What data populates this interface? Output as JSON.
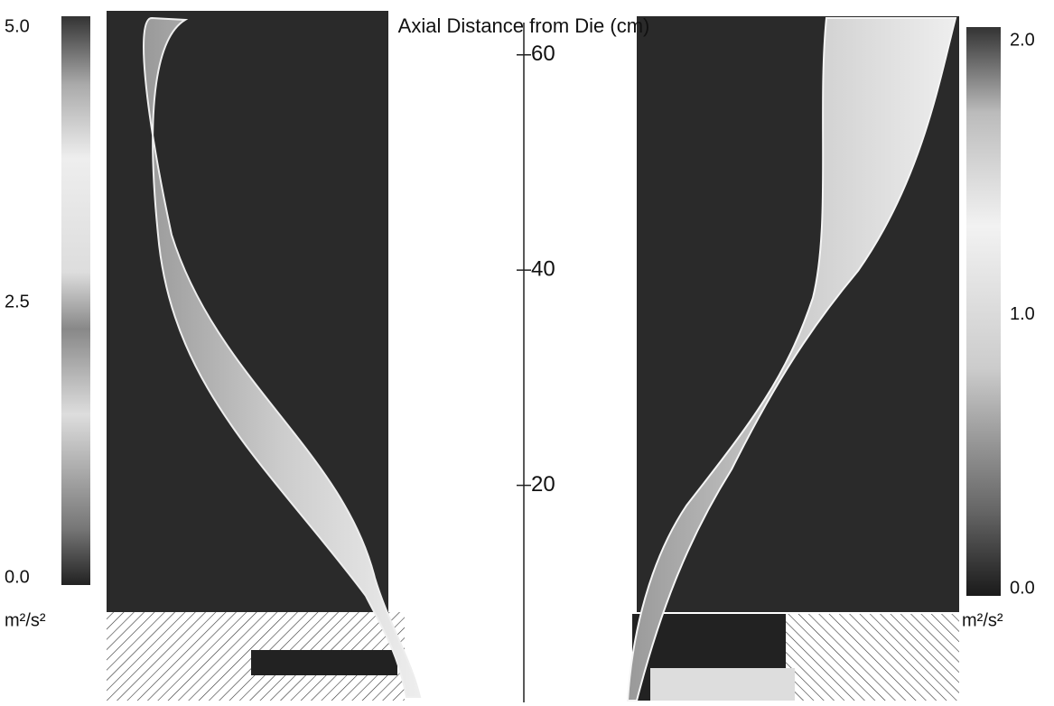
{
  "chart_data": {
    "type": "contour",
    "title": "Axial Distance from Die (cm)",
    "ylim": [
      0,
      63
    ],
    "yticks": [
      20,
      40,
      60
    ],
    "colorbars": [
      {
        "unit": "m²/s²",
        "clim": [
          0,
          5
        ],
        "cticks": [
          {
            "value": 0,
            "label": "0.0"
          },
          2.5,
          {
            "value": 5,
            "label": "5.0"
          }
        ]
      },
      {
        "unit": "m²/s²",
        "clim": [
          0,
          2
        ],
        "cticks": [
          {
            "value": 0,
            "label": "0.0"
          },
          {
            "value": 1,
            "label": "1.0"
          },
          {
            "value": 2,
            "label": "2.0"
          }
        ]
      }
    ]
  }
}
